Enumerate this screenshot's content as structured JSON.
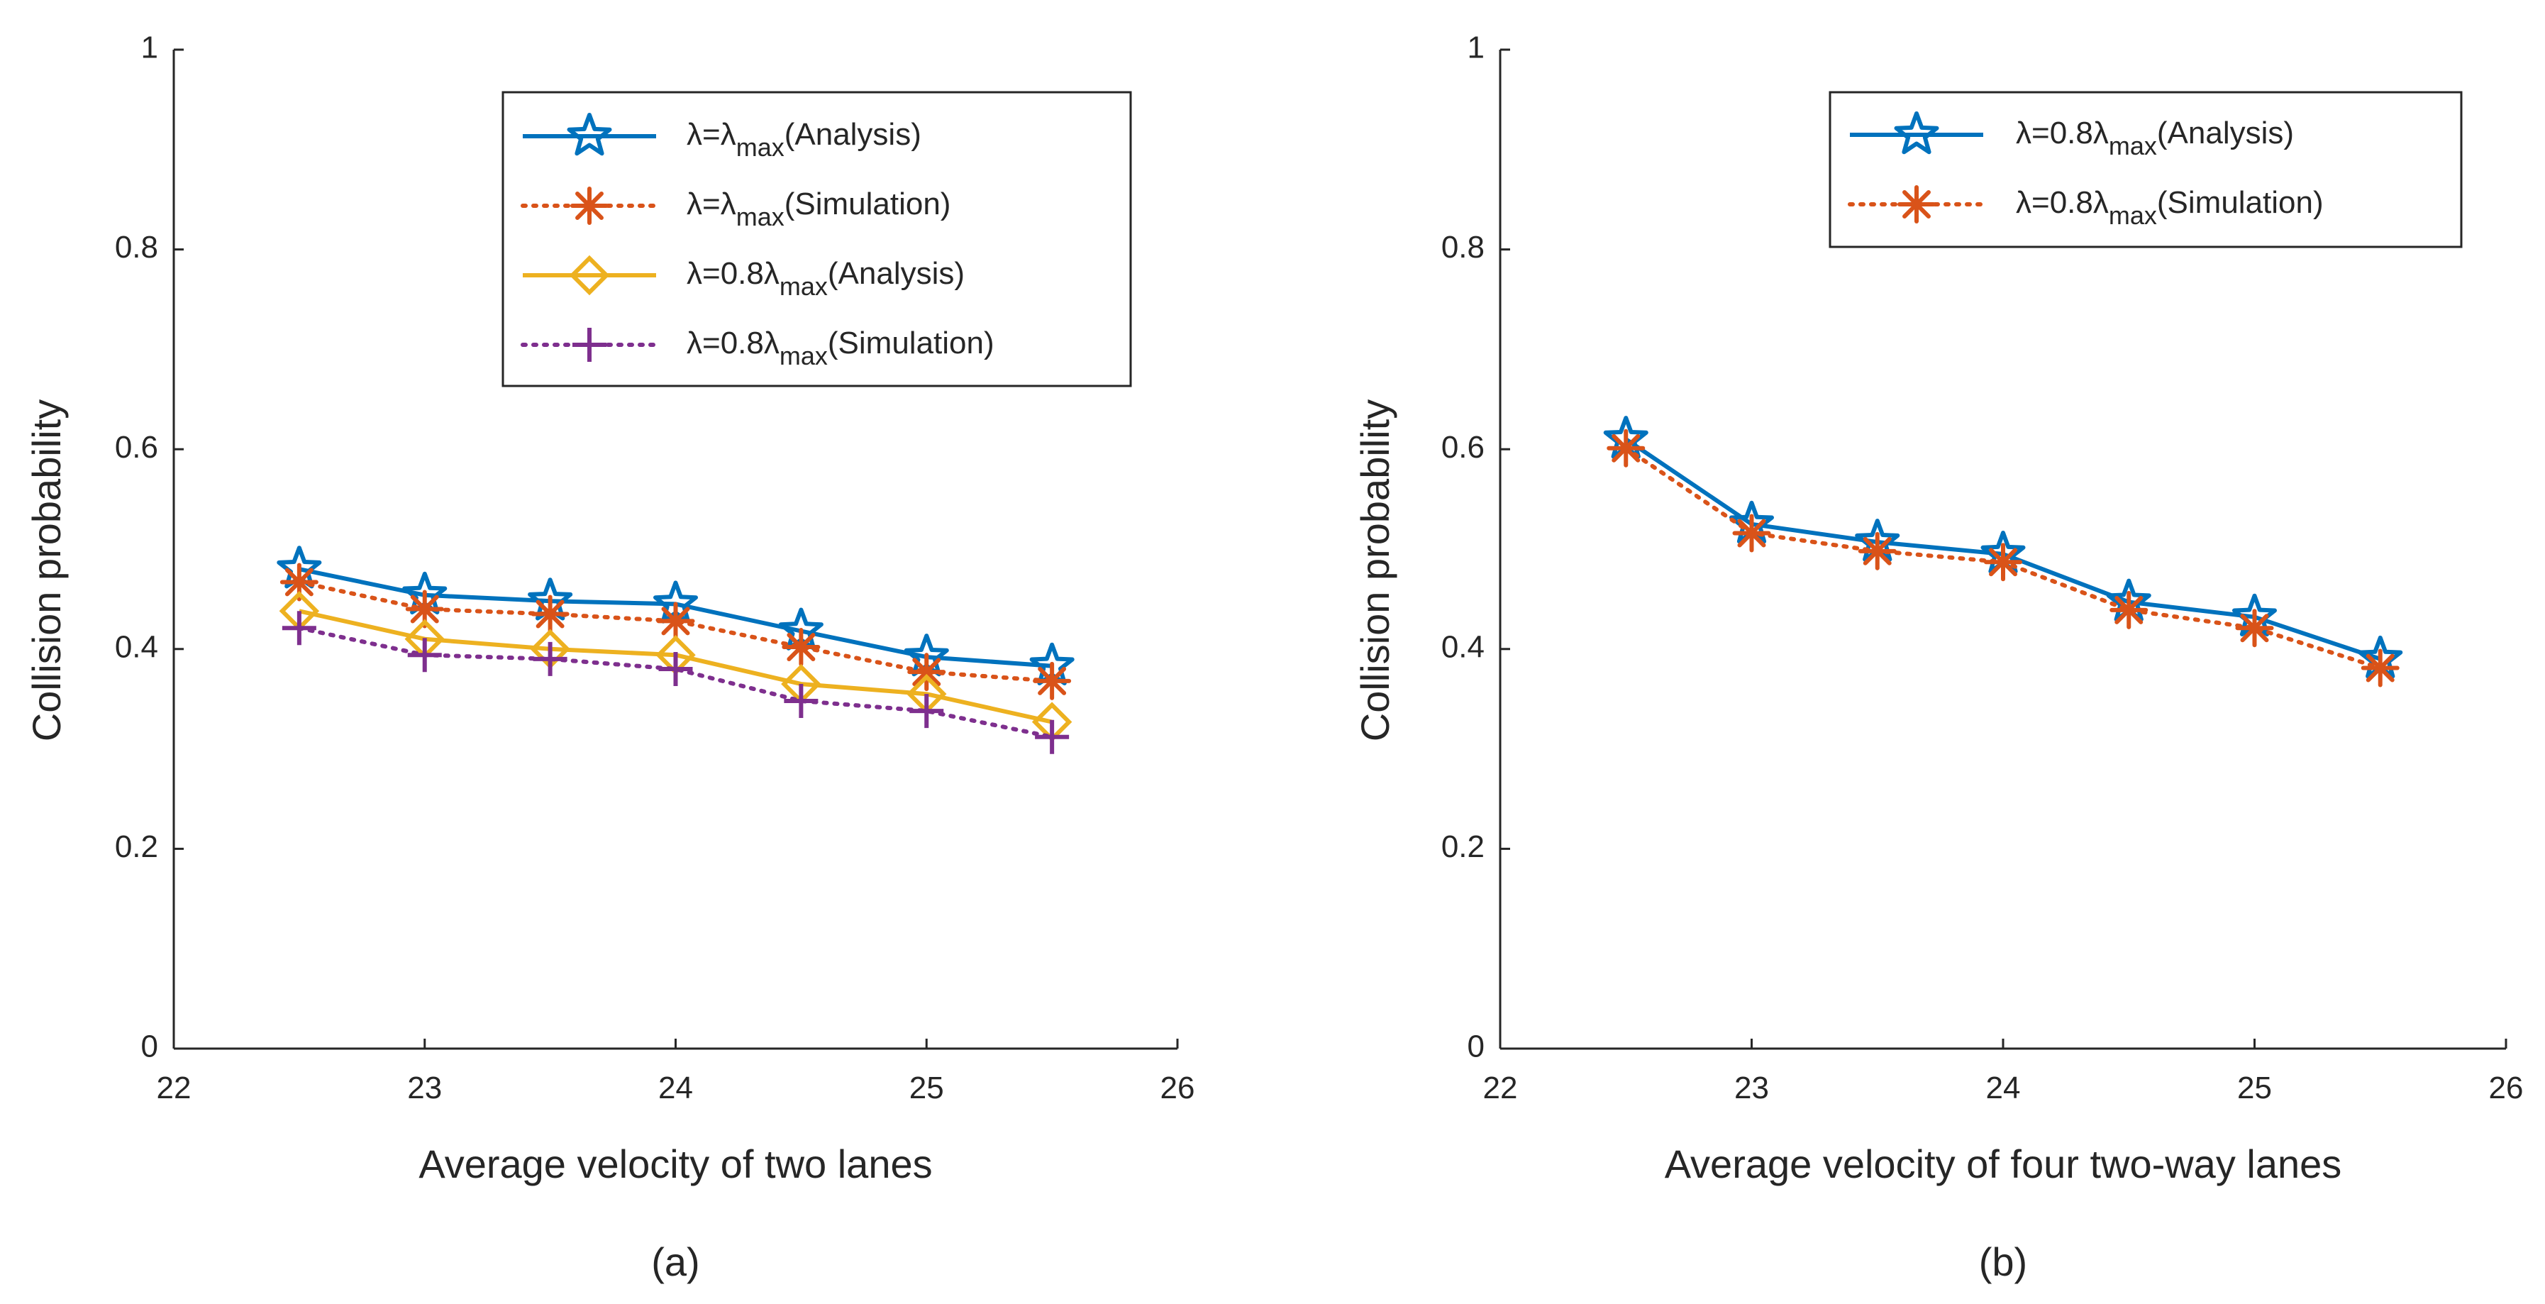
{
  "chart_data": [
    {
      "type": "line",
      "panel_label": "(a)",
      "xlabel": "Average velocity of two lanes",
      "ylabel": "Collision probability",
      "xlim": [
        22,
        26
      ],
      "ylim": [
        0,
        1
      ],
      "xticks": [
        22,
        23,
        24,
        25,
        26
      ],
      "yticks": [
        0,
        0.2,
        0.4,
        0.6,
        0.8,
        1
      ],
      "ytick_labels": [
        "0",
        "0.2",
        "0.4",
        "0.6",
        "0.8",
        "1"
      ],
      "legend_position": "top-right",
      "x": [
        22.5,
        23,
        23.5,
        24,
        24.5,
        25,
        25.5
      ],
      "series": [
        {
          "name": "λ=λmax(Analysis)",
          "legend": {
            "prefix": "λ=λ",
            "sub": "max",
            "suffix": "(Analysis)"
          },
          "color": "#0072BD",
          "line": "solid",
          "marker": "star",
          "values": [
            0.48,
            0.454,
            0.448,
            0.445,
            0.418,
            0.392,
            0.383
          ]
        },
        {
          "name": "λ=λmax(Simulation)",
          "legend": {
            "prefix": "λ=λ",
            "sub": "max",
            "suffix": "(Simulation)"
          },
          "color": "#D95319",
          "line": "dotted",
          "marker": "asterisk",
          "values": [
            0.467,
            0.44,
            0.435,
            0.428,
            0.402,
            0.377,
            0.368
          ]
        },
        {
          "name": "λ=0.8λmax(Analysis)",
          "legend": {
            "prefix": "λ=0.8λ",
            "sub": "max",
            "suffix": "(Analysis)"
          },
          "color": "#EDB120",
          "line": "solid",
          "marker": "diamond",
          "values": [
            0.438,
            0.41,
            0.4,
            0.394,
            0.365,
            0.355,
            0.327
          ]
        },
        {
          "name": "λ=0.8λmax(Simulation)",
          "legend": {
            "prefix": "λ=0.8λ",
            "sub": "max",
            "suffix": "(Simulation)"
          },
          "color": "#7E2F8E",
          "line": "dotted",
          "marker": "plus",
          "values": [
            0.421,
            0.394,
            0.39,
            0.38,
            0.348,
            0.338,
            0.312
          ]
        }
      ]
    },
    {
      "type": "line",
      "panel_label": "(b)",
      "xlabel": "Average velocity of four two-way lanes",
      "ylabel": "Collision probability",
      "xlim": [
        22,
        26
      ],
      "ylim": [
        0,
        1
      ],
      "xticks": [
        22,
        23,
        24,
        25,
        26
      ],
      "yticks": [
        0,
        0.2,
        0.4,
        0.6,
        0.8,
        1
      ],
      "ytick_labels": [
        "0",
        "0.2",
        "0.4",
        "0.6",
        "0.8",
        "1"
      ],
      "legend_position": "top-right",
      "x": [
        22.5,
        23,
        23.5,
        24,
        24.5,
        25,
        25.5
      ],
      "series": [
        {
          "name": "λ=0.8λmax(Analysis)",
          "legend": {
            "prefix": "λ=0.8λ",
            "sub": "max",
            "suffix": "(Analysis)"
          },
          "color": "#0072BD",
          "line": "solid",
          "marker": "star",
          "values": [
            0.61,
            0.525,
            0.507,
            0.495,
            0.447,
            0.432,
            0.39
          ]
        },
        {
          "name": "λ=0.8λmax(Simulation)",
          "legend": {
            "prefix": "λ=0.8λ",
            "sub": "max",
            "suffix": "(Simulation)"
          },
          "color": "#D95319",
          "line": "dotted",
          "marker": "asterisk",
          "values": [
            0.601,
            0.516,
            0.498,
            0.487,
            0.439,
            0.421,
            0.381
          ]
        }
      ]
    }
  ]
}
